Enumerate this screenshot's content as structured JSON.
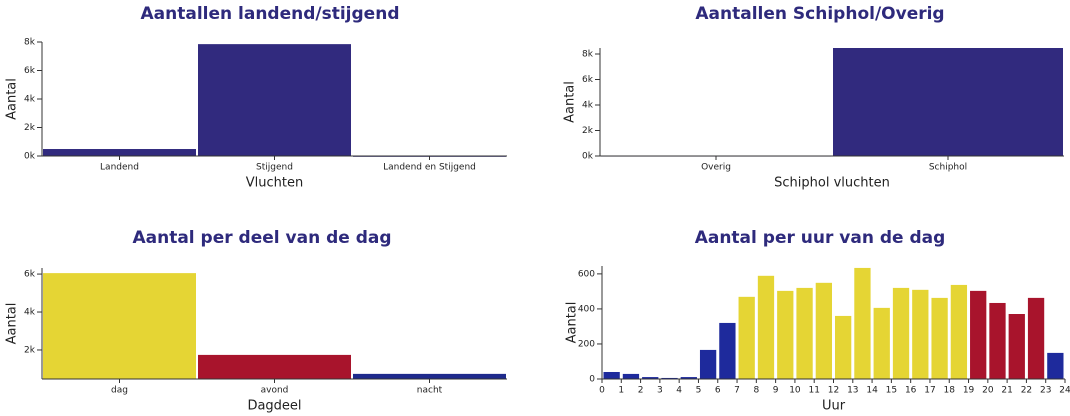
{
  "chart_data": [
    {
      "type": "bar",
      "title": "Aantallen landend/stijgend",
      "xlabel": "Vluchten",
      "ylabel": "Aantal",
      "categories": [
        "Landend",
        "Stijgend",
        "Landend en Stijgend"
      ],
      "values": [
        490,
        7850,
        0
      ],
      "color": "#312a7e",
      "ylim": [
        0,
        8000
      ],
      "yticks": [
        {
          "value": 0,
          "label": "0k"
        },
        {
          "value": 2000,
          "label": "2k"
        },
        {
          "value": 4000,
          "label": "4k"
        },
        {
          "value": 6000,
          "label": "6k"
        },
        {
          "value": 8000,
          "label": "8k"
        }
      ]
    },
    {
      "type": "bar",
      "title": "Aantallen Schiphol/Overig",
      "xlabel": "Schiphol vluchten",
      "ylabel": "Aantal",
      "categories": [
        "Overig",
        "Schiphol"
      ],
      "values": [
        20,
        8470
      ],
      "color": "#312a7e",
      "ylim": [
        0,
        8470
      ],
      "yticks": [
        {
          "value": 0,
          "label": "0k"
        },
        {
          "value": 2000,
          "label": "2k"
        },
        {
          "value": 4000,
          "label": "4k"
        },
        {
          "value": 6000,
          "label": "6k"
        },
        {
          "value": 8000,
          "label": "8k"
        }
      ]
    },
    {
      "type": "bar",
      "title": "Aantal per deel van de dag",
      "xlabel": "Dagdeel",
      "ylabel": "Aantal",
      "categories": [
        "dag",
        "avond",
        "nacht"
      ],
      "values": [
        6050,
        1740,
        740
      ],
      "colors": [
        "#e5d534",
        "#a8142c",
        "#1e2a8c"
      ],
      "ylim": [
        470,
        6320
      ],
      "yticks": [
        {
          "value": 2000,
          "label": "2k"
        },
        {
          "value": 4000,
          "label": "4k"
        },
        {
          "value": 6000,
          "label": "6k"
        }
      ]
    },
    {
      "type": "histogram",
      "title": "Aantal per uur van de dag",
      "xlabel": "Uur",
      "ylabel": "Aantal",
      "bins": [
        0,
        1,
        2,
        3,
        4,
        5,
        6,
        7,
        8,
        9,
        10,
        11,
        12,
        13,
        14,
        15,
        16,
        17,
        18,
        19,
        20,
        21,
        22,
        23,
        24
      ],
      "values": [
        40,
        29,
        11,
        6,
        11,
        166,
        320,
        469,
        589,
        503,
        520,
        549,
        360,
        634,
        406,
        520,
        509,
        463,
        537,
        503,
        434,
        371,
        463,
        149
      ],
      "colors": [
        "#1e2a9c",
        "#1e2a9c",
        "#1e2a9c",
        "#1e2a9c",
        "#1e2a9c",
        "#1e2a9c",
        "#1e2a9c",
        "#e5d534",
        "#e5d534",
        "#e5d534",
        "#e5d534",
        "#e5d534",
        "#e5d534",
        "#e5d534",
        "#e5d534",
        "#e5d534",
        "#e5d534",
        "#e5d534",
        "#e5d534",
        "#a8142c",
        "#a8142c",
        "#a8142c",
        "#a8142c",
        "#1e2a9c"
      ],
      "xlim": [
        0,
        24
      ],
      "xticks": [
        0,
        1,
        2,
        3,
        4,
        5,
        6,
        7,
        8,
        9,
        10,
        11,
        12,
        13,
        14,
        15,
        16,
        17,
        18,
        19,
        20,
        21,
        22,
        23,
        24
      ],
      "ylim": [
        0,
        645
      ],
      "yticks": [
        0,
        200,
        400,
        600
      ]
    }
  ]
}
